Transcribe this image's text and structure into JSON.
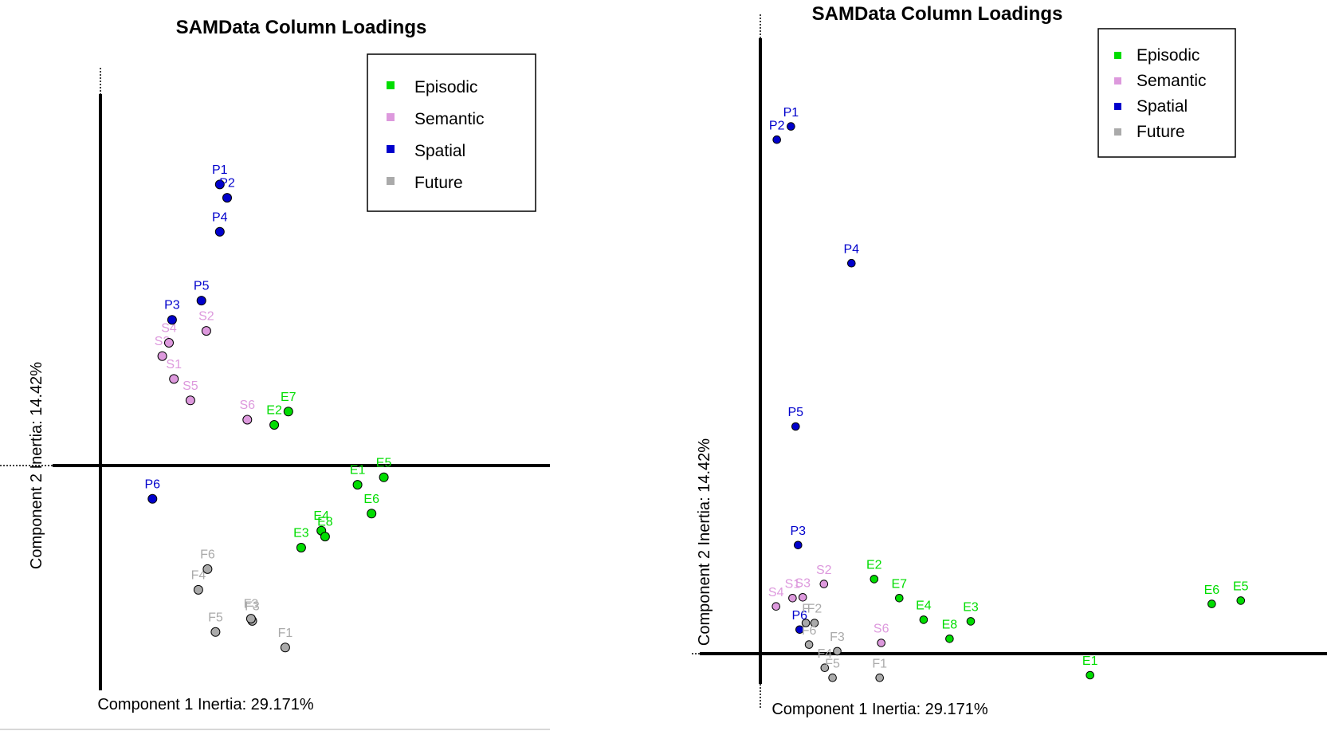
{
  "chart_data": [
    {
      "type": "scatter",
      "title": "SAMData Column Loadings",
      "xlabel": "Component 1 Inertia: 29.171%",
      "ylabel": "Component 2 Inertia: 14.42%",
      "legend_position": "top-right",
      "grid": false,
      "series": [
        {
          "name": "Episodic",
          "color": "#00dd00",
          "points": [
            {
              "label": "E1",
              "x": 0.42,
              "y": -0.026
            },
            {
              "label": "E2",
              "x": 0.284,
              "y": 0.055
            },
            {
              "label": "E3",
              "x": 0.328,
              "y": -0.111
            },
            {
              "label": "E4",
              "x": 0.361,
              "y": -0.088
            },
            {
              "label": "E5",
              "x": 0.463,
              "y": -0.016
            },
            {
              "label": "E6",
              "x": 0.443,
              "y": -0.065
            },
            {
              "label": "E7",
              "x": 0.307,
              "y": 0.073
            },
            {
              "label": "E8",
              "x": 0.367,
              "y": -0.096
            }
          ]
        },
        {
          "name": "Semantic",
          "color": "#dd99dd",
          "points": [
            {
              "label": "S1",
              "x": 0.12,
              "y": 0.117
            },
            {
              "label": "S2",
              "x": 0.173,
              "y": 0.182
            },
            {
              "label": "S3",
              "x": 0.101,
              "y": 0.148
            },
            {
              "label": "S4",
              "x": 0.112,
              "y": 0.166
            },
            {
              "label": "S5",
              "x": 0.147,
              "y": 0.088
            },
            {
              "label": "S6",
              "x": 0.24,
              "y": 0.062
            }
          ]
        },
        {
          "name": "Spatial",
          "color": "#0000cc",
          "points": [
            {
              "label": "P1",
              "x": 0.195,
              "y": 0.38
            },
            {
              "label": "P2",
              "x": 0.207,
              "y": 0.362
            },
            {
              "label": "P3",
              "x": 0.117,
              "y": 0.197
            },
            {
              "label": "P4",
              "x": 0.195,
              "y": 0.316
            },
            {
              "label": "P5",
              "x": 0.165,
              "y": 0.223
            },
            {
              "label": "P6",
              "x": 0.085,
              "y": -0.045
            }
          ]
        },
        {
          "name": "Future",
          "color": "#aaaaaa",
          "points": [
            {
              "label": "F1",
              "x": 0.302,
              "y": -0.246
            },
            {
              "label": "F3",
              "x": 0.248,
              "y": -0.21
            },
            {
              "label": "F4",
              "x": 0.16,
              "y": -0.168
            },
            {
              "label": "F5",
              "x": 0.188,
              "y": -0.225
            },
            {
              "label": "F6",
              "x": 0.175,
              "y": -0.14
            },
            {
              "label": "F3",
              "x": 0.246,
              "y": -0.207
            }
          ]
        }
      ]
    },
    {
      "type": "scatter",
      "title": "SAMData Column Loadings",
      "xlabel": "Component 1 Inertia: 29.171%",
      "ylabel": "Component 2 Inertia: 14.42%",
      "legend_position": "top-right",
      "grid": false,
      "series": [
        {
          "name": "Episodic",
          "color": "#00dd00",
          "points": [
            {
              "label": "E1",
              "x": 0.42,
              "y": -0.026
            },
            {
              "label": "E2",
              "x": 0.145,
              "y": 0.09
            },
            {
              "label": "E3",
              "x": 0.268,
              "y": 0.039
            },
            {
              "label": "E4",
              "x": 0.208,
              "y": 0.041
            },
            {
              "label": "E5",
              "x": 0.612,
              "y": 0.064
            },
            {
              "label": "E6",
              "x": 0.575,
              "y": 0.06
            },
            {
              "label": "E7",
              "x": 0.177,
              "y": 0.067
            },
            {
              "label": "E8",
              "x": 0.241,
              "y": 0.018
            }
          ]
        },
        {
          "name": "Semantic",
          "color": "#dd99dd",
          "points": [
            {
              "label": "S1",
              "x": 0.041,
              "y": 0.067
            },
            {
              "label": "S2",
              "x": 0.081,
              "y": 0.084
            },
            {
              "label": "S3",
              "x": 0.054,
              "y": 0.068
            },
            {
              "label": "S4",
              "x": 0.02,
              "y": 0.057
            },
            {
              "label": "S6",
              "x": 0.154,
              "y": 0.013
            }
          ]
        },
        {
          "name": "Spatial",
          "color": "#0000cc",
          "points": [
            {
              "label": "P1",
              "x": 0.039,
              "y": 0.636
            },
            {
              "label": "P2",
              "x": 0.021,
              "y": 0.62
            },
            {
              "label": "P3",
              "x": 0.048,
              "y": 0.131
            },
            {
              "label": "P4",
              "x": 0.116,
              "y": 0.471
            },
            {
              "label": "P5",
              "x": 0.045,
              "y": 0.274
            },
            {
              "label": "P6",
              "x": 0.05,
              "y": 0.029
            }
          ]
        },
        {
          "name": "Future",
          "color": "#aaaaaa",
          "points": [
            {
              "label": "F1",
              "x": 0.152,
              "y": -0.029
            },
            {
              "label": "F2",
              "x": 0.069,
              "y": 0.037
            },
            {
              "label": "F3",
              "x": 0.098,
              "y": 0.003
            },
            {
              "label": "F4",
              "x": 0.082,
              "y": -0.017
            },
            {
              "label": "F5",
              "x": 0.092,
              "y": -0.029
            },
            {
              "label": "F6",
              "x": 0.062,
              "y": 0.011
            },
            {
              "label": "F",
              "x": 0.058,
              "y": 0.037
            }
          ]
        }
      ]
    }
  ]
}
